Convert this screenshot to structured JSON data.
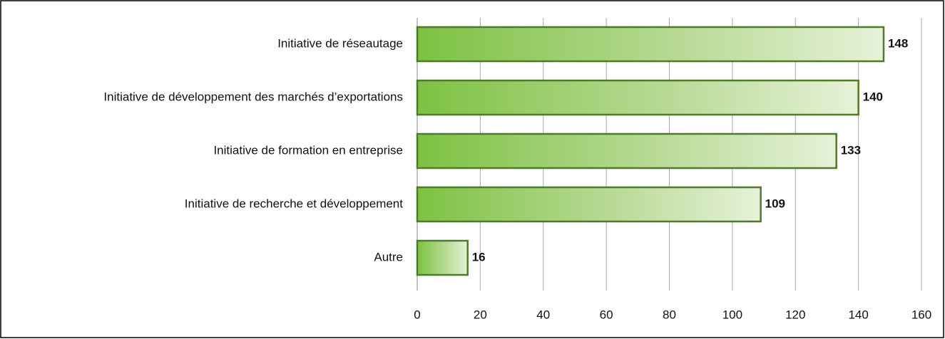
{
  "chart_data": {
    "type": "bar",
    "orientation": "horizontal",
    "categories": [
      "Initiative de réseautage",
      "Initiative de développement des marchés d’exportations",
      "Initiative de formation en entreprise",
      "Initiative de recherche et développement",
      "Autre"
    ],
    "values": [
      148,
      140,
      133,
      109,
      16
    ],
    "color": "#7dc242",
    "xlim": [
      0,
      160
    ],
    "xticks": [
      0,
      20,
      40,
      60,
      80,
      100,
      120,
      140,
      160
    ],
    "grid": true
  }
}
